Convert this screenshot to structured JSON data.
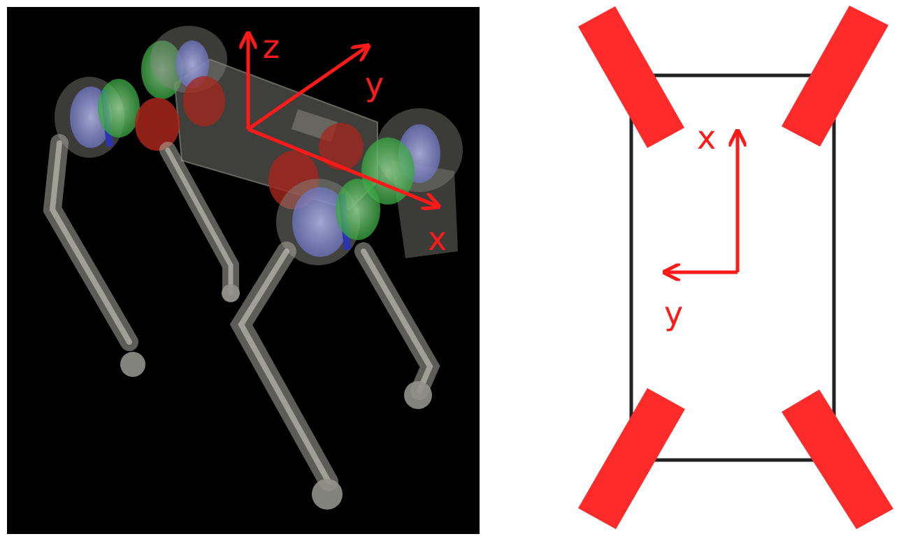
{
  "robot_view": {
    "axes": {
      "z_label": "z",
      "y_label": "y",
      "x_label": "x"
    }
  },
  "top_view": {
    "axes": {
      "x_label": "x",
      "y_label": "y"
    }
  },
  "colors": {
    "axis": "#ff1a1a",
    "leg_bar": "#ff2b2b",
    "body_outline": "#222222",
    "robot_background": "#000000",
    "motor_blue": "#5a64c8",
    "motor_green": "#3fbf4a",
    "motor_red": "#c02a24",
    "link_gray": "#b4b4aa"
  },
  "icons": {
    "robot": "quadruped-robot-icon",
    "arrow": "arrow-icon"
  }
}
